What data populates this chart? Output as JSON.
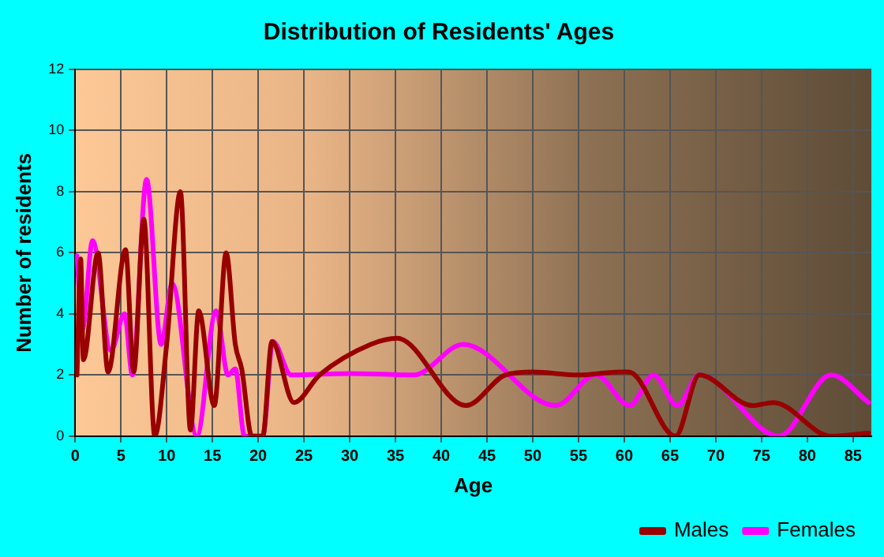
{
  "chart_data": {
    "type": "line",
    "title": "Distribution of Residents' Ages",
    "xlabel": "Age",
    "ylabel": "Number of residents",
    "xlim": [
      0,
      87
    ],
    "xticks": [
      0,
      5,
      10,
      15,
      20,
      25,
      30,
      35,
      40,
      45,
      50,
      55,
      60,
      65,
      70,
      75,
      80,
      85
    ],
    "ylim": [
      0,
      12
    ],
    "yticks": [
      0,
      2,
      4,
      6,
      8,
      10,
      12
    ],
    "grid": true,
    "legend": "bottom right",
    "marker": "none",
    "line_style": "solid",
    "series": [
      {
        "name": "Males",
        "color": "#990000",
        "x": [
          0.2,
          0.6,
          0.9,
          2.5,
          3.6,
          5.5,
          6.4,
          7.5,
          8.7,
          10,
          11.5,
          12.6,
          13.5,
          15.2,
          16.5,
          17.5,
          18.2,
          19.3,
          20.5,
          21.5,
          23.9,
          26.7,
          32.3,
          35.2,
          42.7,
          47,
          50,
          55,
          59.5,
          60.5,
          65.6,
          68.2,
          74,
          76.3,
          82.6,
          86.7
        ],
        "values": [
          2,
          5.8,
          2.5,
          6,
          2.1,
          6.1,
          2.1,
          7.1,
          0,
          3,
          8,
          0.2,
          4.1,
          1,
          6,
          3,
          2.2,
          0,
          0,
          3.1,
          1.1,
          2,
          3,
          3.2,
          1,
          2,
          2.1,
          2,
          2.1,
          2.1,
          0,
          2,
          1,
          1.1,
          0,
          0.1
        ]
      },
      {
        "name": "Females",
        "color": "#ff00ff",
        "x": [
          0.2,
          0.8,
          1.9,
          3.9,
          5.4,
          6.25,
          7.8,
          9.4,
          10.6,
          13.3,
          15.4,
          16.7,
          17.5,
          18.5,
          20.5,
          21.6,
          23.6,
          30,
          37,
          42.4,
          52.5,
          56.9,
          60.6,
          63.2,
          65.8,
          68.2,
          76.9,
          82.6,
          86.7
        ],
        "values": [
          5.9,
          3.5,
          6.4,
          2.8,
          4,
          2,
          8.4,
          3,
          5,
          0,
          4.1,
          2,
          2.2,
          0,
          0,
          3.1,
          2,
          2.05,
          2,
          3,
          1,
          2,
          1,
          2,
          1,
          2,
          0,
          2,
          1.1
        ]
      }
    ]
  }
}
